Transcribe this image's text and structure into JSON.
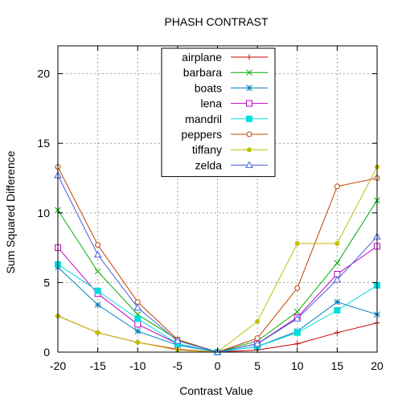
{
  "chart_data": {
    "type": "line",
    "title": "PHASH CONTRAST",
    "xlabel": "Contrast Value",
    "ylabel": "Sum Squared Difference",
    "x": [
      -20,
      -15,
      -10,
      -5,
      0,
      5,
      10,
      15,
      20
    ],
    "xlim": [
      -20,
      20
    ],
    "ylim": [
      0,
      22
    ],
    "xticks": [
      -20,
      -15,
      -10,
      -5,
      0,
      5,
      10,
      15,
      20
    ],
    "yticks": [
      0,
      5,
      10,
      15,
      20
    ],
    "grid": true,
    "legend_position": "top-center",
    "series": [
      {
        "name": "airplane",
        "color": "#cc0000",
        "marker": "plus",
        "values": [
          2.6,
          1.4,
          0.7,
          0.2,
          0.0,
          0.15,
          0.6,
          1.4,
          2.1
        ]
      },
      {
        "name": "barbara",
        "color": "#00aa00",
        "marker": "cross",
        "values": [
          10.2,
          5.8,
          2.7,
          0.9,
          0.0,
          0.8,
          2.9,
          6.4,
          10.9
        ]
      },
      {
        "name": "boats",
        "color": "#0080c0",
        "marker": "star",
        "values": [
          6.1,
          3.4,
          1.5,
          0.5,
          0.0,
          0.4,
          1.5,
          3.6,
          2.7
        ]
      },
      {
        "name": "lena",
        "color": "#c000c0",
        "marker": "open-square",
        "values": [
          7.5,
          4.2,
          2.0,
          0.6,
          0.0,
          0.6,
          2.5,
          5.6,
          7.6
        ]
      },
      {
        "name": "mandril",
        "color": "#00dddd",
        "marker": "filled-square",
        "values": [
          6.3,
          4.4,
          2.4,
          0.6,
          0.0,
          0.4,
          1.4,
          3.0,
          4.8
        ]
      },
      {
        "name": "peppers",
        "color": "#c04000",
        "marker": "open-circle",
        "values": [
          13.3,
          7.7,
          3.6,
          0.9,
          0.0,
          1.0,
          4.6,
          11.9,
          12.5
        ]
      },
      {
        "name": "tiffany",
        "color": "#c0c000",
        "marker": "filled-circle",
        "values": [
          2.6,
          1.4,
          0.7,
          0.15,
          0.0,
          2.2,
          7.8,
          7.8,
          13.3
        ]
      },
      {
        "name": "zelda",
        "color": "#4060e0",
        "marker": "open-triangle",
        "values": [
          12.7,
          7.0,
          3.2,
          0.8,
          0.0,
          0.6,
          2.4,
          5.2,
          8.3
        ]
      }
    ]
  }
}
